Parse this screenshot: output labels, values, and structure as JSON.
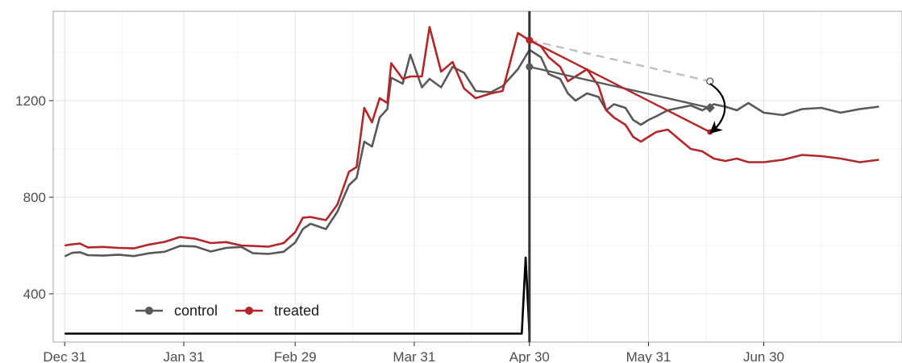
{
  "chart_data": {
    "type": "line",
    "x_axis": {
      "type": "date",
      "start": "2023-12-31",
      "end": "2024-07-30",
      "range": [
        "2023-12-28",
        "2024-08-05"
      ],
      "ticks": [
        {
          "date": "2023-12-31",
          "label": "Dec 31"
        },
        {
          "date": "2024-01-31",
          "label": "Jan 31"
        },
        {
          "date": "2024-02-29",
          "label": "Feb 29"
        },
        {
          "date": "2024-03-31",
          "label": "Mar 31"
        },
        {
          "date": "2024-04-30",
          "label": "Apr 30"
        },
        {
          "date": "2024-05-31",
          "label": "May 31"
        },
        {
          "date": "2024-06-30",
          "label": "Jun 30"
        }
      ]
    },
    "y_axis": {
      "range": [
        200,
        1570
      ],
      "ticks": [
        {
          "value": 400,
          "label": "400"
        },
        {
          "value": 800,
          "label": "800"
        },
        {
          "value": 1200,
          "label": "1200"
        }
      ]
    },
    "grid": true,
    "legend": {
      "position": "bottom-left",
      "entries": [
        {
          "key": "control",
          "label": "control",
          "color": "#595959"
        },
        {
          "key": "treated",
          "label": "treated",
          "color": "#b2282a"
        }
      ]
    },
    "colors": {
      "control": "#595959",
      "treated": "#b2282a",
      "counterfactual": "#bfbfbf",
      "intervention": "#333333",
      "bottom_series": "#000000"
    },
    "series": [
      {
        "name": "control",
        "values": [
          [
            "2023-12-31",
            555
          ],
          [
            "2024-01-02",
            570
          ],
          [
            "2024-01-04",
            572
          ],
          [
            "2024-01-06",
            560
          ],
          [
            "2024-01-10",
            558
          ],
          [
            "2024-01-14",
            562
          ],
          [
            "2024-01-18",
            556
          ],
          [
            "2024-01-22",
            568
          ],
          [
            "2024-01-26",
            574
          ],
          [
            "2024-01-30",
            598
          ],
          [
            "2024-02-03",
            596
          ],
          [
            "2024-02-07",
            575
          ],
          [
            "2024-02-11",
            590
          ],
          [
            "2024-02-15",
            594
          ],
          [
            "2024-02-18",
            568
          ],
          [
            "2024-02-22",
            565
          ],
          [
            "2024-02-26",
            574
          ],
          [
            "2024-02-29",
            612
          ],
          [
            "2024-03-02",
            668
          ],
          [
            "2024-03-04",
            690
          ],
          [
            "2024-03-08",
            668
          ],
          [
            "2024-03-11",
            740
          ],
          [
            "2024-03-14",
            850
          ],
          [
            "2024-03-16",
            880
          ],
          [
            "2024-03-18",
            1030
          ],
          [
            "2024-03-20",
            1010
          ],
          [
            "2024-03-22",
            1130
          ],
          [
            "2024-03-24",
            1165
          ],
          [
            "2024-03-25",
            1295
          ],
          [
            "2024-03-28",
            1270
          ],
          [
            "2024-03-30",
            1390
          ],
          [
            "2024-04-02",
            1255
          ],
          [
            "2024-04-04",
            1290
          ],
          [
            "2024-04-07",
            1255
          ],
          [
            "2024-04-10",
            1340
          ],
          [
            "2024-04-13",
            1315
          ],
          [
            "2024-04-16",
            1240
          ],
          [
            "2024-04-20",
            1235
          ],
          [
            "2024-04-23",
            1260
          ],
          [
            "2024-04-27",
            1330
          ],
          [
            "2024-04-30",
            1410
          ],
          [
            "2024-05-03",
            1380
          ],
          [
            "2024-05-05",
            1310
          ],
          [
            "2024-05-08",
            1290
          ],
          [
            "2024-05-10",
            1230
          ],
          [
            "2024-05-12",
            1200
          ],
          [
            "2024-05-15",
            1230
          ],
          [
            "2024-05-18",
            1215
          ],
          [
            "2024-05-20",
            1160
          ],
          [
            "2024-05-22",
            1185
          ],
          [
            "2024-05-25",
            1170
          ],
          [
            "2024-05-27",
            1120
          ],
          [
            "2024-05-29",
            1100
          ],
          [
            "2024-05-31",
            1120
          ],
          [
            "2024-06-02",
            1135
          ],
          [
            "2024-06-05",
            1160
          ],
          [
            "2024-06-08",
            1170
          ],
          [
            "2024-06-11",
            1180
          ],
          [
            "2024-06-14",
            1160
          ],
          [
            "2024-06-17",
            1185
          ],
          [
            "2024-06-20",
            1175
          ],
          [
            "2024-06-23",
            1160
          ],
          [
            "2024-06-26",
            1190
          ],
          [
            "2024-06-30",
            1150
          ],
          [
            "2024-07-05",
            1140
          ],
          [
            "2024-07-10",
            1165
          ],
          [
            "2024-07-15",
            1170
          ],
          [
            "2024-07-20",
            1150
          ],
          [
            "2024-07-25",
            1165
          ],
          [
            "2024-07-30",
            1175
          ]
        ]
      },
      {
        "name": "treated",
        "values": [
          [
            "2023-12-31",
            600
          ],
          [
            "2024-01-02",
            605
          ],
          [
            "2024-01-04",
            608
          ],
          [
            "2024-01-06",
            592
          ],
          [
            "2024-01-10",
            594
          ],
          [
            "2024-01-14",
            590
          ],
          [
            "2024-01-18",
            588
          ],
          [
            "2024-01-22",
            604
          ],
          [
            "2024-01-26",
            615
          ],
          [
            "2024-01-30",
            635
          ],
          [
            "2024-02-03",
            628
          ],
          [
            "2024-02-07",
            610
          ],
          [
            "2024-02-11",
            614
          ],
          [
            "2024-02-15",
            600
          ],
          [
            "2024-02-18",
            598
          ],
          [
            "2024-02-22",
            595
          ],
          [
            "2024-02-26",
            610
          ],
          [
            "2024-02-29",
            655
          ],
          [
            "2024-03-02",
            715
          ],
          [
            "2024-03-04",
            718
          ],
          [
            "2024-03-08",
            705
          ],
          [
            "2024-03-11",
            770
          ],
          [
            "2024-03-14",
            905
          ],
          [
            "2024-03-16",
            925
          ],
          [
            "2024-03-18",
            1170
          ],
          [
            "2024-03-20",
            1110
          ],
          [
            "2024-03-22",
            1210
          ],
          [
            "2024-03-24",
            1190
          ],
          [
            "2024-03-25",
            1355
          ],
          [
            "2024-03-28",
            1290
          ],
          [
            "2024-03-30",
            1300
          ],
          [
            "2024-04-02",
            1300
          ],
          [
            "2024-04-04",
            1505
          ],
          [
            "2024-04-07",
            1320
          ],
          [
            "2024-04-10",
            1360
          ],
          [
            "2024-04-13",
            1250
          ],
          [
            "2024-04-16",
            1210
          ],
          [
            "2024-04-20",
            1230
          ],
          [
            "2024-04-23",
            1240
          ],
          [
            "2024-04-27",
            1480
          ],
          [
            "2024-04-30",
            1450
          ],
          [
            "2024-05-03",
            1425
          ],
          [
            "2024-05-05",
            1380
          ],
          [
            "2024-05-08",
            1340
          ],
          [
            "2024-05-10",
            1280
          ],
          [
            "2024-05-12",
            1300
          ],
          [
            "2024-05-15",
            1330
          ],
          [
            "2024-05-18",
            1260
          ],
          [
            "2024-05-20",
            1160
          ],
          [
            "2024-05-22",
            1130
          ],
          [
            "2024-05-25",
            1100
          ],
          [
            "2024-05-27",
            1050
          ],
          [
            "2024-05-29",
            1030
          ],
          [
            "2024-05-31",
            1050
          ],
          [
            "2024-06-02",
            1070
          ],
          [
            "2024-06-05",
            1080
          ],
          [
            "2024-06-08",
            1040
          ],
          [
            "2024-06-11",
            1000
          ],
          [
            "2024-06-14",
            990
          ],
          [
            "2024-06-17",
            960
          ],
          [
            "2024-06-20",
            950
          ],
          [
            "2024-06-23",
            960
          ],
          [
            "2024-06-26",
            945
          ],
          [
            "2024-06-30",
            945
          ],
          [
            "2024-07-05",
            955
          ],
          [
            "2024-07-10",
            975
          ],
          [
            "2024-07-15",
            970
          ],
          [
            "2024-07-20",
            960
          ],
          [
            "2024-07-25",
            945
          ],
          [
            "2024-07-30",
            955
          ]
        ]
      }
    ],
    "bottom_series": [
      [
        "2023-12-31",
        235
      ],
      [
        "2024-04-28",
        235
      ],
      [
        "2024-04-29",
        550
      ],
      [
        "2024-04-30",
        235
      ]
    ],
    "intervention_date": "2024-04-30",
    "annotations": {
      "control_trend": [
        [
          "2024-04-30",
          1340
        ],
        [
          "2024-06-16",
          1170
        ]
      ],
      "treated_trend": [
        [
          "2024-04-30",
          1450
        ],
        [
          "2024-06-16",
          1070
        ]
      ],
      "counterfactual_trend": [
        [
          "2024-04-30",
          1450
        ],
        [
          "2024-06-16",
          1280
        ]
      ],
      "arrow": {
        "from": [
          "2024-06-16",
          1280
        ],
        "to": [
          "2024-06-16",
          1070
        ]
      }
    }
  }
}
